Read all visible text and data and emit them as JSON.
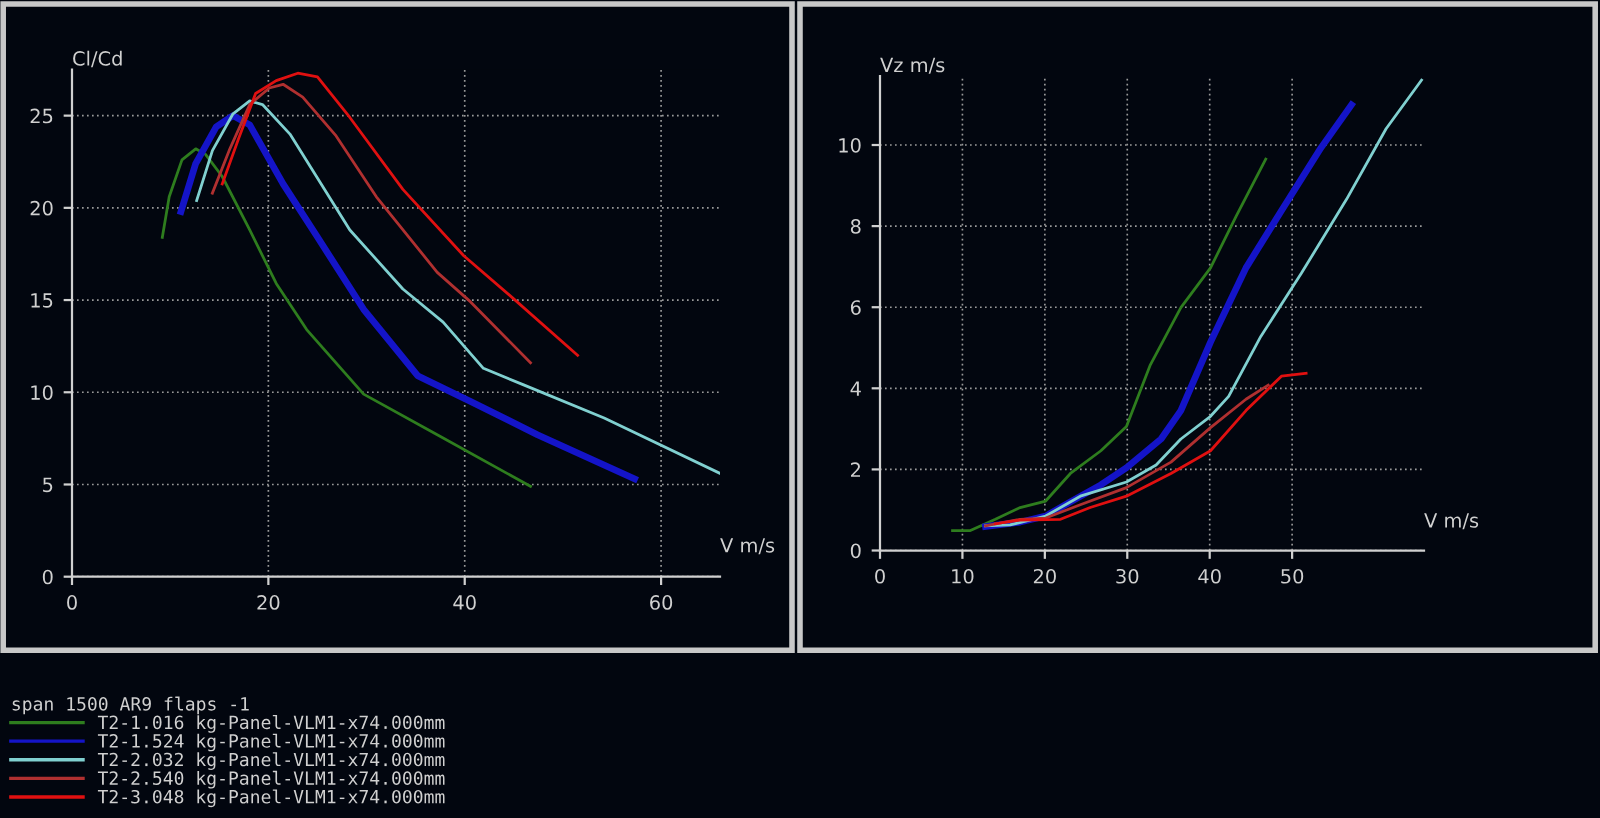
{
  "chart_data": [
    {
      "type": "line",
      "xlabel": "V m/s",
      "ylabel": "Cl/Cd",
      "xlim": [
        0,
        66
      ],
      "ylim": [
        0,
        27.5
      ],
      "xticks": [
        0,
        20,
        40,
        60
      ],
      "yticks": [
        0,
        5,
        10,
        15,
        20,
        25
      ],
      "grid": true,
      "legend": "bottom",
      "legend_title": "span 1500 AR9 flaps -1",
      "series": [
        {
          "name": "T2-1.016 kg-Panel-VLM1-x74.000mm",
          "color": "#2e7d1e",
          "x": [
            9.2,
            9.9,
            11.2,
            12.6,
            13.6,
            15.3,
            18.1,
            20.8,
            23.9,
            29.7,
            37.2,
            46.7
          ],
          "values": [
            18.4,
            20.6,
            22.6,
            23.2,
            22.9,
            21.7,
            18.8,
            15.9,
            13.4,
            9.9,
            7.7,
            4.9
          ]
        },
        {
          "name": "T2-1.524 kg-Panel-VLM1-x74.000mm",
          "color": "#1414c8",
          "x": [
            11.1,
            12.6,
            14.7,
            16.4,
            18.1,
            21.5,
            24.9,
            29.7,
            35.2,
            40.6,
            47.4,
            57.3
          ],
          "values": [
            19.8,
            22.4,
            24.4,
            25.0,
            24.5,
            21.3,
            18.5,
            14.5,
            10.9,
            9.5,
            7.7,
            5.3
          ]
        },
        {
          "name": "T2-2.032 kg-Panel-VLM1-x74.000mm",
          "color": "#80d0d0",
          "x": [
            12.7,
            14.3,
            16.4,
            18.1,
            19.4,
            22.2,
            24.9,
            28.3,
            33.7,
            37.8,
            41.9,
            46.0,
            54.2,
            66.0
          ],
          "values": [
            20.4,
            23.1,
            25.1,
            25.8,
            25.6,
            24.0,
            21.7,
            18.8,
            15.6,
            13.8,
            11.3,
            10.4,
            8.6,
            5.6
          ]
        },
        {
          "name": "T2-2.540 kg-Panel-VLM1-x74.000mm",
          "color": "#b03030",
          "x": [
            14.3,
            16.0,
            18.1,
            20.1,
            21.5,
            23.5,
            26.9,
            31.0,
            37.2,
            40.6,
            46.7
          ],
          "values": [
            20.8,
            23.1,
            25.6,
            26.5,
            26.7,
            26.0,
            23.9,
            20.6,
            16.5,
            14.9,
            11.6
          ]
        },
        {
          "name": "T2-3.048 kg-Panel-VLM1-x74.000mm",
          "color": "#e01010",
          "x": [
            15.3,
            17.0,
            18.7,
            20.8,
            23.0,
            25.0,
            28.3,
            33.7,
            39.9,
            44.7,
            51.5
          ],
          "values": [
            21.3,
            23.8,
            26.2,
            26.9,
            27.3,
            27.1,
            24.9,
            21.0,
            17.4,
            15.2,
            12.0
          ]
        }
      ]
    },
    {
      "type": "line",
      "xlabel": "V m/s",
      "ylabel": "Vz m/s",
      "xlim": [
        0,
        66
      ],
      "ylim": [
        0,
        11.7
      ],
      "xticks": [
        0,
        10,
        20,
        30,
        40,
        50
      ],
      "yticks": [
        0,
        2,
        4,
        6,
        8,
        10
      ],
      "grid": true,
      "series": [
        {
          "color": "#2e7d1e",
          "x": [
            8.8,
            10.9,
            14.0,
            17.0,
            20.1,
            23.1,
            26.8,
            29.9,
            32.8,
            36.5,
            40.1,
            43.2,
            46.8
          ],
          "values": [
            0.49,
            0.49,
            0.77,
            1.06,
            1.22,
            1.9,
            2.46,
            3.06,
            4.58,
            5.99,
            6.97,
            8.24,
            9.65
          ]
        },
        {
          "color": "#1414c8",
          "x": [
            12.8,
            17.0,
            20.1,
            23.1,
            26.8,
            29.9,
            34.1,
            36.5,
            40.1,
            44.4,
            48.7,
            53.5,
            57.2
          ],
          "values": [
            0.59,
            0.7,
            0.85,
            1.2,
            1.62,
            2.04,
            2.75,
            3.45,
            5.14,
            6.97,
            8.38,
            9.93,
            10.99
          ]
        },
        {
          "color": "#80d0d0",
          "x": [
            12.8,
            15.8,
            20.1,
            24.3,
            29.9,
            33.5,
            36.5,
            40.1,
            42.3,
            46.2,
            51.1,
            56.6,
            61.4,
            65.7
          ],
          "values": [
            0.61,
            0.63,
            0.85,
            1.34,
            1.69,
            2.11,
            2.75,
            3.31,
            3.8,
            5.28,
            6.83,
            8.66,
            10.4,
            11.6
          ]
        },
        {
          "color": "#b03030",
          "x": [
            12.8,
            17.0,
            20.1,
            24.3,
            29.9,
            35.3,
            40.1,
            44.4,
            47.1
          ],
          "values": [
            0.61,
            0.77,
            0.8,
            1.13,
            1.55,
            2.18,
            3.03,
            3.73,
            4.08
          ]
        },
        {
          "color": "#e01010",
          "x": [
            14.0,
            17.0,
            21.9,
            25.5,
            29.9,
            35.3,
            40.1,
            44.4,
            48.7,
            51.7
          ],
          "values": [
            0.66,
            0.75,
            0.77,
            1.06,
            1.34,
            1.9,
            2.46,
            3.45,
            4.3,
            4.37
          ]
        }
      ]
    }
  ]
}
